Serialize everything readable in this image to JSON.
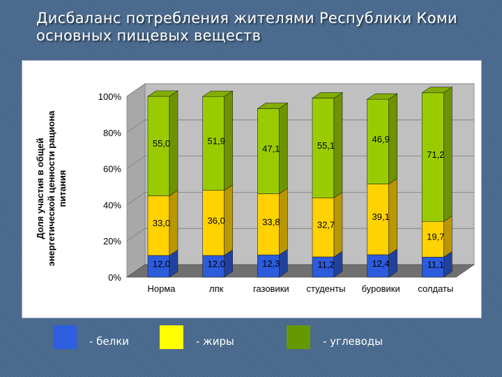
{
  "slide": {
    "title_line1": "Дисбаланс  потребления жителями Республики Коми",
    "title_line2": "основных пищевых веществ"
  },
  "chart_data": {
    "type": "bar",
    "stacked": true,
    "percent_stacked": true,
    "categories": [
      "Норма",
      "лпк",
      "газовики",
      "студенты",
      "буровики",
      "солдаты"
    ],
    "series": [
      {
        "name": "белки",
        "color": "#2c5bdc",
        "values": [
          12.0,
          12.0,
          12.3,
          11.2,
          12.4,
          11.1
        ],
        "labels": [
          "12,0",
          "12,0",
          "12,3",
          "11,2",
          "12,4",
          "11,1"
        ]
      },
      {
        "name": "жиры",
        "color": "#ffd200",
        "values": [
          33.0,
          36.0,
          33.8,
          32.7,
          39.1,
          19.7
        ],
        "labels": [
          "33,0",
          "36,0",
          "33,8",
          "32,7",
          "39,1",
          "19,7"
        ]
      },
      {
        "name": "углеводы",
        "color": "#99cc00",
        "values": [
          55.0,
          51.9,
          47.1,
          55.1,
          46.9,
          71.2
        ],
        "labels": [
          "55,0",
          "51,9",
          "47,1",
          "55,1",
          "46,9",
          "71,2"
        ]
      }
    ],
    "y_ticks": [
      "0%",
      "20%",
      "40%",
      "60%",
      "80%",
      "100%"
    ],
    "ylabel_lines": [
      "Доля участия в общей",
      "энергетической ценности рациона",
      "питания"
    ],
    "ylim": [
      0,
      100
    ],
    "grid": true
  },
  "legend": {
    "items": [
      {
        "label": "- белки",
        "color": "#2e5fe0"
      },
      {
        "label": "- жиры",
        "color": "#ffff00"
      },
      {
        "label": "- углеводы",
        "color": "#669900"
      }
    ]
  }
}
